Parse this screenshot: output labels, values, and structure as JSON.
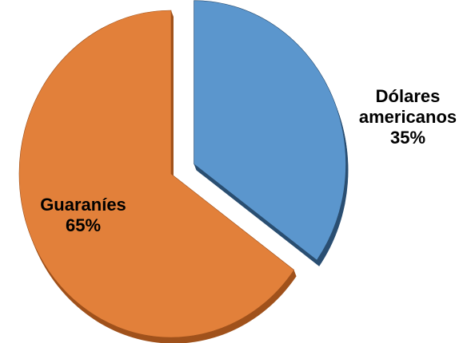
{
  "chart_data": {
    "type": "pie",
    "style": "3d-exploded",
    "title": "",
    "slices": [
      {
        "name": "Dólares americanos",
        "label_lines": [
          "Dólares",
          "americanos"
        ],
        "value": 35,
        "value_label": "35%",
        "color": "#5b96cd",
        "side_color": "#2b4f72",
        "exploded": true
      },
      {
        "name": "Guaraníes",
        "label_lines": [
          "Guaraníes"
        ],
        "value": 65,
        "value_label": "65%",
        "color": "#e2803a",
        "side_color": "#a0521c",
        "exploded": false
      }
    ],
    "legend": "none"
  }
}
